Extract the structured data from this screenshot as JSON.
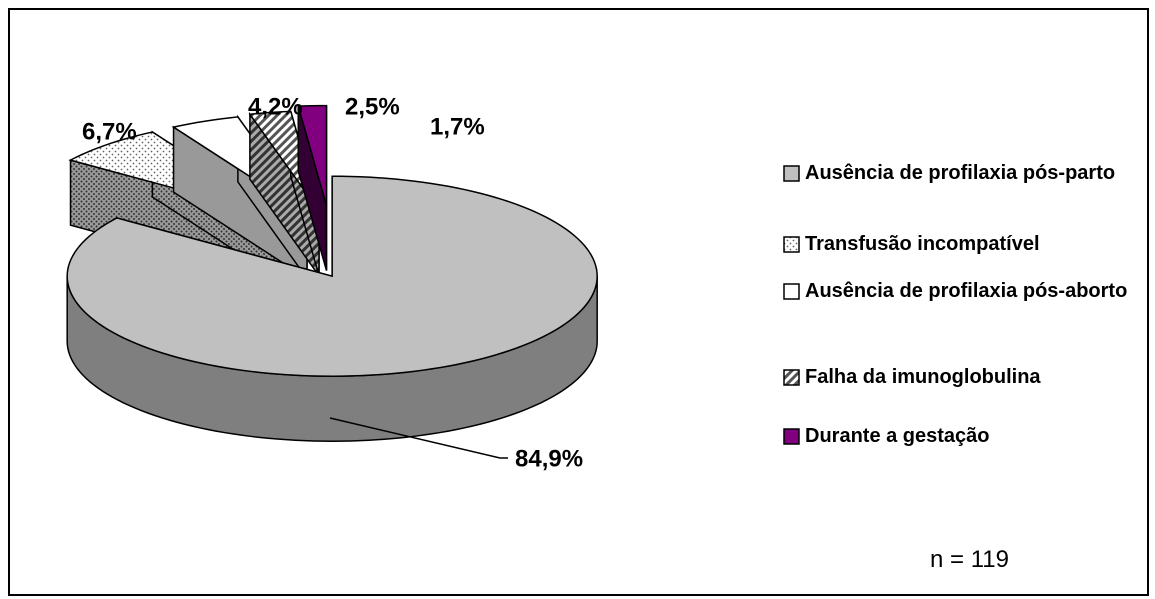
{
  "chart_data": {
    "type": "pie",
    "categories": [
      "Ausência de profilaxia pós-parto",
      "Transfusão incompatível",
      "Ausência de profilaxia pós-aborto",
      "Falha da imunoglobulina",
      "Durante a gestação"
    ],
    "values": [
      84.9,
      6.7,
      4.2,
      2.5,
      1.7
    ],
    "value_labels": [
      "84,9%",
      "6,7%",
      "4,2%",
      "2,5%",
      "1,7%"
    ],
    "colors": [
      "#c0c0c0",
      "dots",
      "#ffffff",
      "hatch",
      "#800080"
    ],
    "annotation": "n = 119"
  }
}
